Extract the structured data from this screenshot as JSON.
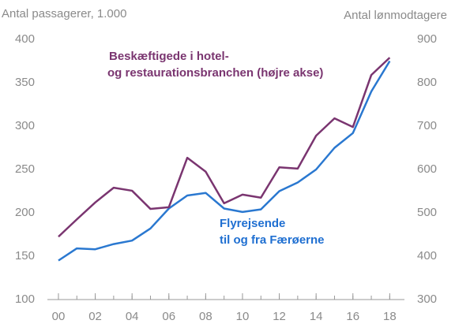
{
  "chart_data": {
    "type": "line",
    "ylabel": "Antal passagerer, 1.000",
    "y2label": "Antal lønmodtagere",
    "annotations": [
      {
        "lines": [
          "Beskæftigede i  hotel-",
          "og restaurationsbranchen (højre akse)"
        ],
        "color": "#7a3570"
      },
      {
        "lines": [
          "Flyrejsende",
          "til og fra Færøerne"
        ],
        "color": "#1f6fd1"
      }
    ],
    "x": [
      2000,
      2001,
      2002,
      2003,
      2004,
      2005,
      2006,
      2007,
      2008,
      2009,
      2010,
      2011,
      2012,
      2013,
      2014,
      2015,
      2016,
      2017,
      2018
    ],
    "xlim": [
      1999.4,
      2018.8
    ],
    "xticks": [
      {
        "value": 2000,
        "label": "00"
      },
      {
        "value": 2002,
        "label": "02"
      },
      {
        "value": 2004,
        "label": "04"
      },
      {
        "value": 2006,
        "label": "06"
      },
      {
        "value": 2008,
        "label": "08"
      },
      {
        "value": 2010,
        "label": "10"
      },
      {
        "value": 2012,
        "label": "12"
      },
      {
        "value": 2014,
        "label": "14"
      },
      {
        "value": 2016,
        "label": "16"
      },
      {
        "value": 2018,
        "label": "18"
      }
    ],
    "ylim": [
      100,
      400
    ],
    "yticks": [
      100,
      150,
      200,
      250,
      300,
      350,
      400
    ],
    "y2lim": [
      300,
      900
    ],
    "y2ticks": [
      300,
      400,
      500,
      600,
      700,
      800,
      900
    ],
    "grid": false,
    "series": [
      {
        "name": "Flyrejsende til og fra Færøerne",
        "color": "#2a78d0",
        "values": [
          145,
          159,
          158,
          164,
          168,
          182,
          205,
          220,
          223,
          205,
          201,
          204,
          225,
          235,
          250,
          275,
          292,
          340,
          375
        ]
      },
      {
        "name": "Beskæftigede i hotel- og restaurationsbranchen",
        "color": "#7a3570",
        "axis": "y2",
        "values": [
          445,
          485,
          524,
          558,
          551,
          509,
          513,
          627,
          595,
          522,
          542,
          535,
          605,
          602,
          678,
          718,
          698,
          818,
          858
        ]
      }
    ]
  }
}
